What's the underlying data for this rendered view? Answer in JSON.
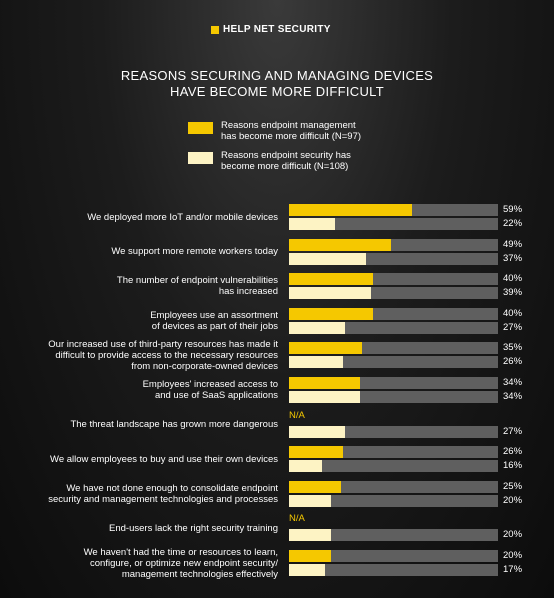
{
  "logo": "HELP NET SECURITY",
  "chart_data": {
    "type": "bar",
    "orientation": "horizontal",
    "title": "REASONS SECURING AND MANAGING DEVICES\nHAVE BECOME MORE DIFFICULT",
    "categories": [
      "We deployed more IoT and/or mobile devices",
      "We support more remote workers today",
      "The number of endpoint vulnerabilities\nhas increased",
      "Employees use an assortment\nof devices as part of their jobs",
      "Our increased use of third-party resources has made it\ndifficult to provide access to the necessary resources\nfrom non-corporate-owned devices",
      "Employees' increased access to\nand use of SaaS applications",
      "The threat landscape has grown more dangerous",
      "We allow employees to buy and use their own devices",
      "We have not done enough to consolidate endpoint\nsecurity and management technologies and processes",
      "End-users lack the right security training",
      "We haven't had the time or resources to learn,\nconfigure, or optimize new endpoint security/\nmanagement technologies effectively"
    ],
    "series": [
      {
        "name": "Reasons endpoint management\nhas become more difficult (N=97)",
        "color": "#f5c800",
        "values": [
          59,
          49,
          40,
          40,
          35,
          34,
          null,
          26,
          25,
          null,
          20
        ],
        "value_labels": [
          "59%",
          "49%",
          "40%",
          "40%",
          "35%",
          "34%",
          "N/A",
          "26%",
          "25%",
          "N/A",
          "20%"
        ]
      },
      {
        "name": "Reasons endpoint security has\nbecome more difficult (N=108)",
        "color": "#fdf3c4",
        "values": [
          22,
          37,
          39,
          27,
          26,
          34,
          27,
          16,
          20,
          20,
          17
        ],
        "value_labels": [
          "22%",
          "37%",
          "39%",
          "27%",
          "26%",
          "34%",
          "27%",
          "16%",
          "20%",
          "20%",
          "17%"
        ]
      }
    ],
    "xlim": [
      0,
      100
    ],
    "track_color": "#5f5f5f"
  }
}
